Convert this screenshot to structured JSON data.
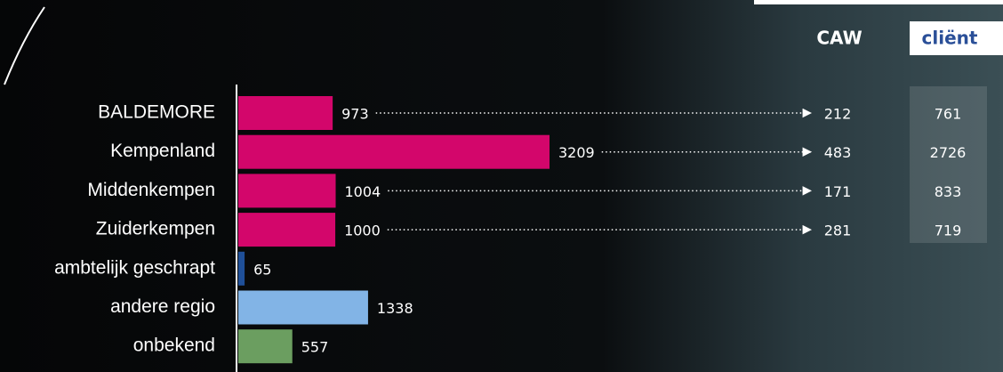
{
  "chart_data": {
    "type": "bar",
    "categories": [
      "BALDEMORE",
      "Kempenland",
      "Middenkempen",
      "Zuiderkempen",
      "ambtelijk geschrapt",
      "andere regio",
      "onbekend"
    ],
    "values": [
      973,
      3209,
      1004,
      1000,
      65,
      1338,
      557
    ],
    "colors": [
      "#d3066b",
      "#d3066b",
      "#d3066b",
      "#d3066b",
      "#1f4f98",
      "#82b4e6",
      "#6b9e60"
    ],
    "columns": [
      {
        "name": "CAW",
        "values": [
          212,
          483,
          171,
          281
        ]
      },
      {
        "name": "cliënt",
        "values": [
          761,
          2726,
          833,
          719
        ]
      }
    ]
  }
}
